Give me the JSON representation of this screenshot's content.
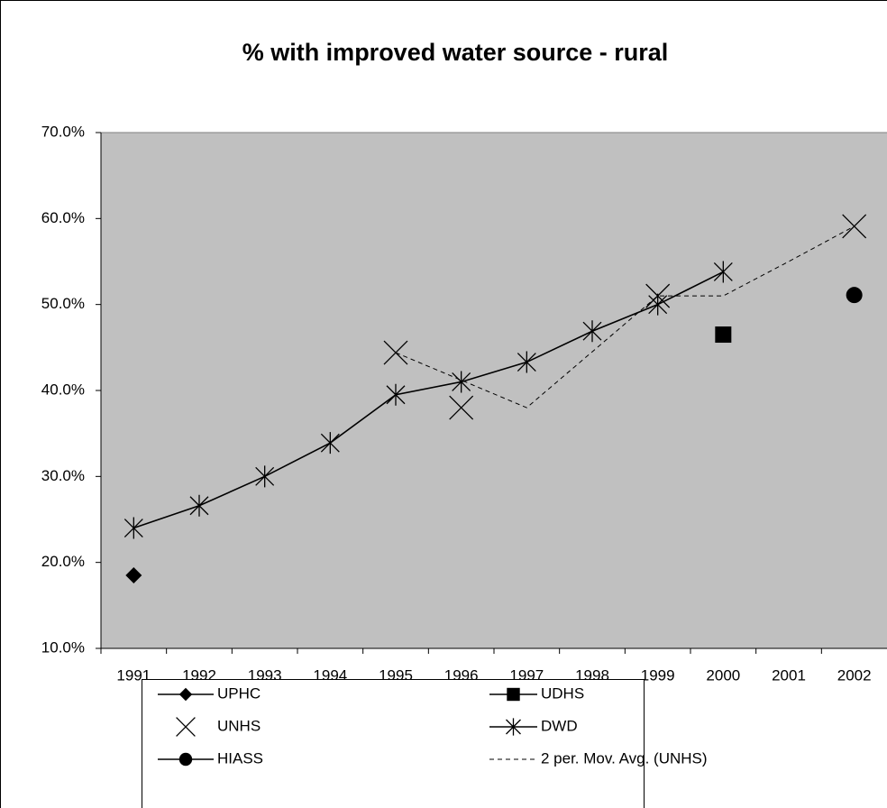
{
  "chart_data": {
    "type": "line",
    "title": "% with improved water source  - rural",
    "categories": [
      "1991",
      "1992",
      "1993",
      "1994",
      "1995",
      "1996",
      "1997",
      "1998",
      "1999",
      "2000",
      "2001",
      "2002"
    ],
    "ylim": [
      10,
      70
    ],
    "yticks": [
      {
        "value": 10,
        "label": "10.0%"
      },
      {
        "value": 20,
        "label": "20.0%"
      },
      {
        "value": 30,
        "label": "30.0%"
      },
      {
        "value": 40,
        "label": "40.0%"
      },
      {
        "value": 50,
        "label": "50.0%"
      },
      {
        "value": 60,
        "label": "60.0%"
      },
      {
        "value": 70,
        "label": "70.0%"
      }
    ],
    "plot_background": "#c0c0c0",
    "series": [
      {
        "name": "UPHC",
        "color": "#000000",
        "marker": "diamond",
        "line": "solid",
        "values": [
          18.5,
          null,
          null,
          null,
          null,
          null,
          null,
          null,
          null,
          null,
          null,
          null
        ]
      },
      {
        "name": "UDHS",
        "color": "#000000",
        "marker": "square",
        "line": "solid",
        "values": [
          null,
          null,
          null,
          null,
          null,
          null,
          null,
          null,
          null,
          46.5,
          null,
          null
        ]
      },
      {
        "name": "UNHS",
        "color": "#000000",
        "marker": "x",
        "line": "none",
        "values": [
          null,
          null,
          null,
          null,
          44.4,
          38,
          null,
          null,
          51,
          null,
          null,
          59.1
        ]
      },
      {
        "name": "DWD",
        "color": "#000000",
        "marker": "star",
        "line": "solid",
        "values": [
          24,
          26.6,
          30,
          33.9,
          39.5,
          41,
          43.3,
          46.9,
          50,
          53.8,
          null,
          null
        ]
      },
      {
        "name": "HIASS",
        "color": "#000000",
        "marker": "circle",
        "line": "solid",
        "values": [
          null,
          null,
          null,
          null,
          null,
          null,
          null,
          null,
          null,
          null,
          null,
          51.1
        ]
      },
      {
        "name": "2 per. Mov. Avg. (UNHS)",
        "color": "#000000",
        "marker": "none",
        "line": "dash",
        "values": [
          null,
          null,
          null,
          null,
          44.4,
          41.2,
          38,
          44.5,
          51,
          51,
          55,
          59.1
        ]
      }
    ]
  }
}
